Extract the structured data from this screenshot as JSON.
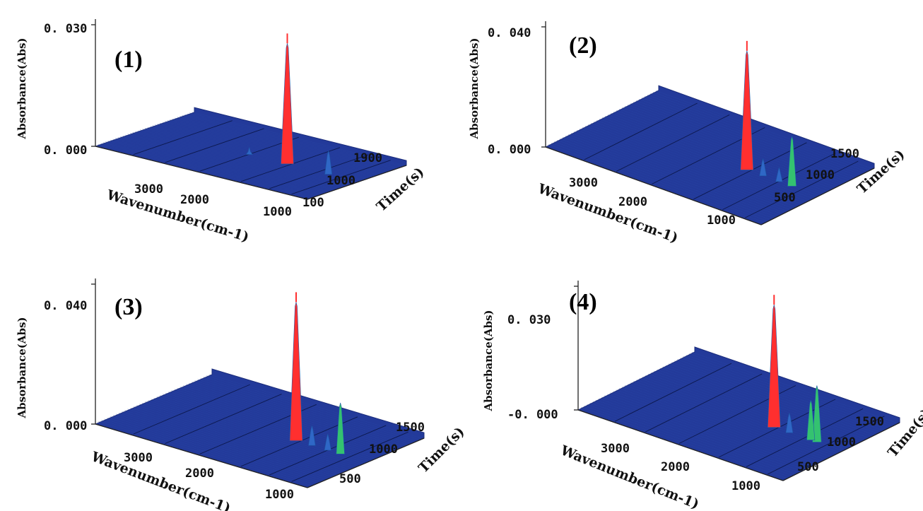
{
  "chart_data": [
    {
      "type": "surface3d",
      "panel_label": "(1)",
      "xlabel": "Wavenumber(cm-1)",
      "ylabel": "Time(s)",
      "zlabel": "Absorbance(Abs)",
      "x_ticks": [
        "3000",
        "2000",
        "1000"
      ],
      "y_ticks": [
        "100",
        "1000",
        "1900"
      ],
      "z_ticks": [
        "0. 000",
        "0. 030"
      ],
      "xlim": [
        4000,
        650
      ],
      "ylim": [
        100,
        1900
      ],
      "zlim": [
        0,
        0.03
      ],
      "peaks": [
        {
          "wavenumber": 1750,
          "time": 1000,
          "absorbance": 0.03
        },
        {
          "wavenumber": 1100,
          "time": 1000,
          "absorbance": 0.006
        },
        {
          "wavenumber": 2350,
          "time": 1000,
          "absorbance": 0.002
        }
      ]
    },
    {
      "type": "surface3d",
      "panel_label": "(2)",
      "xlabel": "Wavenumber(cm-1)",
      "ylabel": "Time(s)",
      "zlabel": "Absorbance(Abs)",
      "x_ticks": [
        "3000",
        "2000",
        "1000"
      ],
      "y_ticks": [
        "500",
        "1000",
        "1500"
      ],
      "z_ticks": [
        "0. 000",
        "0. 040"
      ],
      "xlim": [
        4000,
        650
      ],
      "ylim": [
        0,
        1800
      ],
      "zlim": [
        0,
        0.04
      ],
      "peaks": [
        {
          "wavenumber": 1750,
          "time": 900,
          "absorbance": 0.04
        },
        {
          "wavenumber": 1050,
          "time": 900,
          "absorbance": 0.017
        },
        {
          "wavenumber": 1500,
          "time": 900,
          "absorbance": 0.006
        },
        {
          "wavenumber": 1250,
          "time": 900,
          "absorbance": 0.005
        }
      ]
    },
    {
      "type": "surface3d",
      "panel_label": "(3)",
      "xlabel": "Wavenumber(cm-1)",
      "ylabel": "Time(s)",
      "zlabel": "Absorbance(Abs)",
      "x_ticks": [
        "3000",
        "2000",
        "1000"
      ],
      "y_ticks": [
        "500",
        "1000",
        "1500"
      ],
      "z_ticks": [
        "0. 000",
        "0. 040"
      ],
      "xlim": [
        4000,
        650
      ],
      "ylim": [
        0,
        1800
      ],
      "zlim": [
        0,
        0.04
      ],
      "peaks": [
        {
          "wavenumber": 1750,
          "time": 900,
          "absorbance": 0.04
        },
        {
          "wavenumber": 1050,
          "time": 900,
          "absorbance": 0.015
        },
        {
          "wavenumber": 1500,
          "time": 900,
          "absorbance": 0.006
        },
        {
          "wavenumber": 1250,
          "time": 900,
          "absorbance": 0.005
        }
      ]
    },
    {
      "type": "surface3d",
      "panel_label": "(4)",
      "xlabel": "Wavenumber(cm-1)",
      "ylabel": "Time(s)",
      "zlabel": "Absorbance(Abs)",
      "x_ticks": [
        "3000",
        "2000",
        "1000"
      ],
      "y_ticks": [
        "500",
        "1000",
        "1500"
      ],
      "z_ticks": [
        "-0. 000",
        "0. 030"
      ],
      "xlim": [
        4000,
        650
      ],
      "ylim": [
        0,
        1800
      ],
      "zlim": [
        0,
        0.03
      ],
      "peaks": [
        {
          "wavenumber": 1750,
          "time": 900,
          "absorbance": 0.03
        },
        {
          "wavenumber": 1050,
          "time": 900,
          "absorbance": 0.014
        },
        {
          "wavenumber": 1150,
          "time": 900,
          "absorbance": 0.01
        },
        {
          "wavenumber": 1500,
          "time": 900,
          "absorbance": 0.005
        }
      ]
    }
  ],
  "colors": {
    "surface_low": "#233a9a",
    "surface_mid": "#2f67c6",
    "peak_mid": "#34c270",
    "peak_high": "#9be23a",
    "peak_top": "#ff2f2f"
  }
}
